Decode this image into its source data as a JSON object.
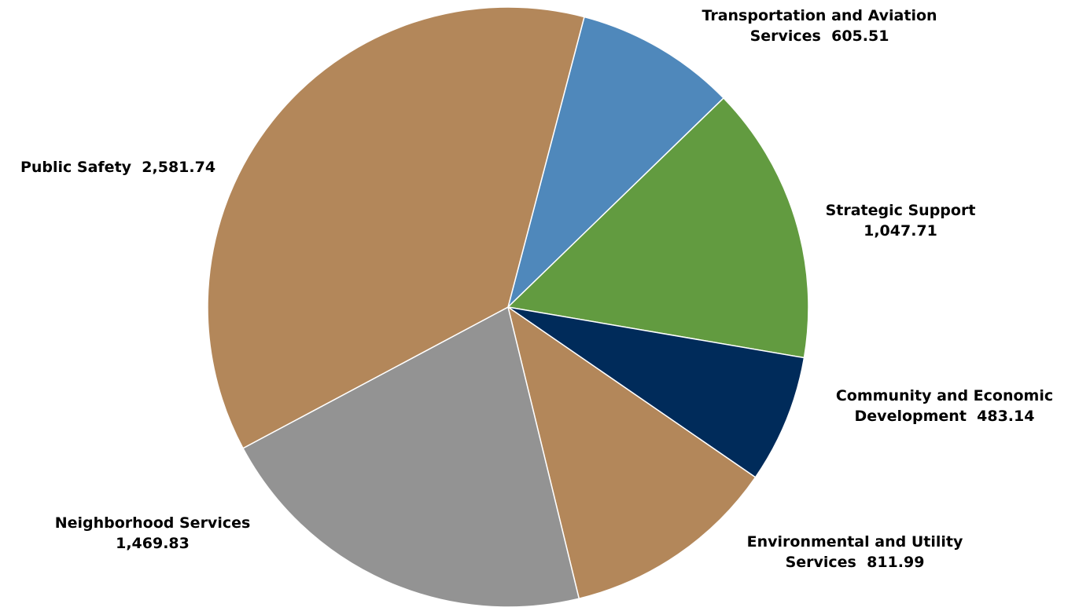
{
  "chart_data": {
    "type": "pie",
    "start_angle_deg": 14.7,
    "direction": "clockwise",
    "slices": [
      {
        "label_line1": "Transportation and Aviation",
        "label_line2": "Services",
        "value_text": "605.51",
        "value": 605.51,
        "color": "#4F88BB"
      },
      {
        "label_line1": "Strategic Support",
        "label_line2": "",
        "value_text": "1,047.71",
        "value": 1047.71,
        "color": "#629B40"
      },
      {
        "label_line1": "Community and Economic",
        "label_line2": "Development",
        "value_text": "483.14",
        "value": 483.14,
        "color": "#002B5A"
      },
      {
        "label_line1": "Environmental and Utility",
        "label_line2": "Services",
        "value_text": "811.99",
        "value": 811.99,
        "color": "#B3875A"
      },
      {
        "label_line1": "Neighborhood Services",
        "label_line2": "",
        "value_text": "1,469.83",
        "value": 1469.83,
        "color": "#939393"
      },
      {
        "label_line1": "Public Safety",
        "label_line2": "",
        "value_text": "2,581.74",
        "value": 2581.74,
        "color": "#B3875A"
      }
    ]
  }
}
